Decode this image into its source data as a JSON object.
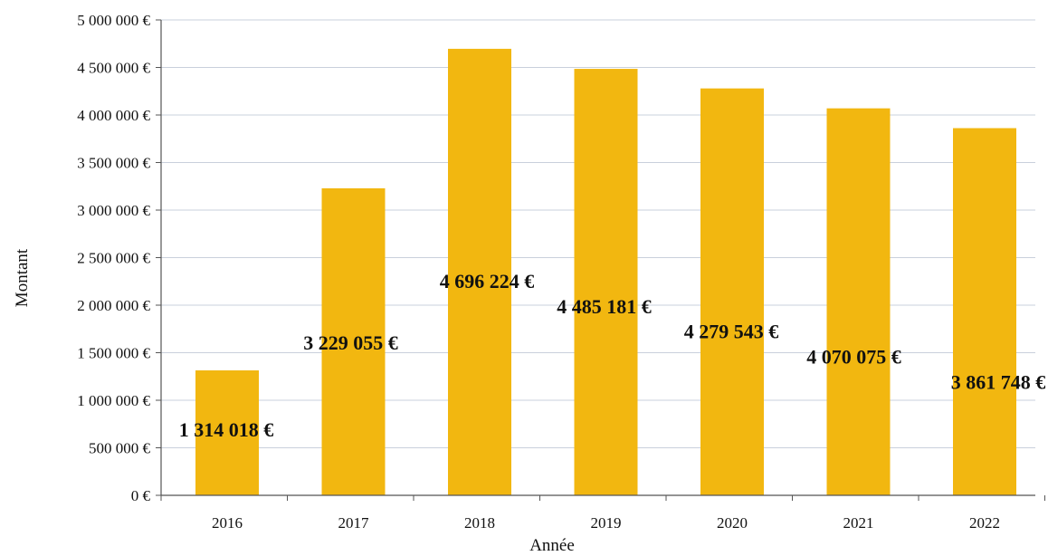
{
  "chart_data": {
    "type": "bar",
    "categories": [
      "2016",
      "2017",
      "2018",
      "2019",
      "2020",
      "2021",
      "2022"
    ],
    "values": [
      1314018,
      3229055,
      4696224,
      4485181,
      4279543,
      4070075,
      3861748
    ],
    "data_labels": [
      "1 314 018 €",
      "3 229 055 €",
      "4 696 224 €",
      "4 485 181 €",
      "4 279 543 €",
      "4 070 075 €",
      "3 861 748 €"
    ],
    "title": "",
    "xlabel": "Année",
    "ylabel": "Montant",
    "ylim": [
      0,
      5000000
    ],
    "yticks": [
      0,
      500000,
      1000000,
      1500000,
      2000000,
      2500000,
      3000000,
      3500000,
      4000000,
      4500000,
      5000000
    ],
    "ytick_labels": [
      "0 €",
      "500 000 €",
      "1 000 000 €",
      "1 500 000 €",
      "2 000 000 €",
      "2 500 000 €",
      "3 000 000 €",
      "3 500 000 €",
      "4 000 000 €",
      "4 500 000 €",
      "5 000 000 €"
    ],
    "grid": true,
    "legend": "none",
    "colors": {
      "bar": "#F2B710",
      "grid": "#c9d0dc",
      "axis": "#555555",
      "text": "#111111"
    }
  }
}
